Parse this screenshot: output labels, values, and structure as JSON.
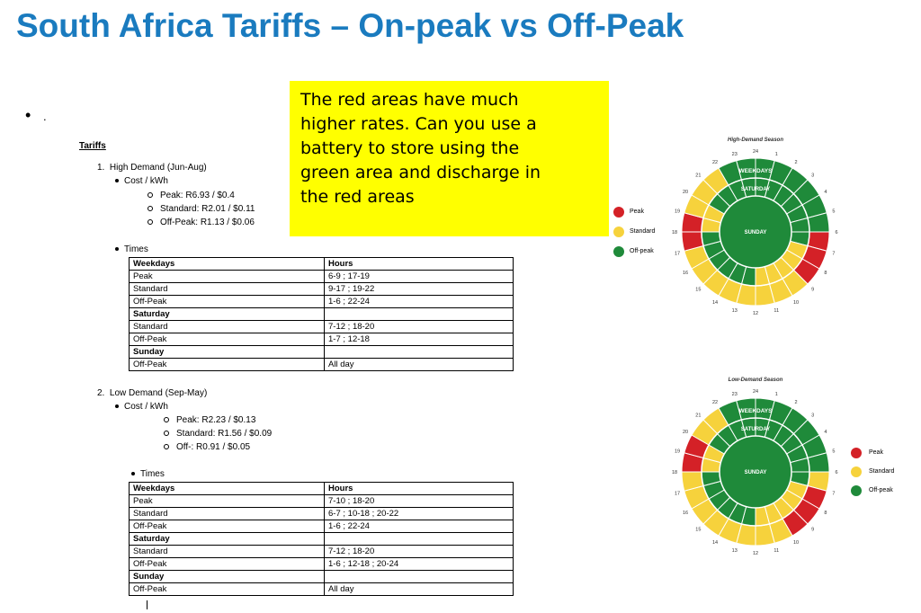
{
  "title": "South Africa Tariffs – On-peak vs Off-Peak",
  "bullet_text": ".",
  "callout": {
    "lines": [
      "The red areas have much",
      "higher rates. Can you use a",
      "battery to store using the",
      "green area and discharge in",
      "the red areas"
    ]
  },
  "doc": {
    "heading": "Tariffs",
    "high": {
      "num": "1.",
      "label": "High Demand (Jun-Aug)",
      "cost_label": "Cost / kWh",
      "costs": [
        "Peak: R6.93 / $0.4",
        "Standard: R2.01 / $0.11",
        "Off-Peak: R1.13 / $0.06"
      ],
      "times_label": "Times"
    },
    "low": {
      "num": "2.",
      "label": "Low Demand (Sep-May)",
      "cost_label": "Cost / kWh",
      "costs": [
        "Peak: R2.23 / $0.13",
        "Standard: R1.56 / $0.09",
        "Off-: R0.91 / $0.05"
      ],
      "times_label": "Times"
    }
  },
  "table_high": [
    [
      "Weekdays",
      "Hours"
    ],
    [
      "Peak",
      "6-9 ; 17-19"
    ],
    [
      "Standard",
      "9-17 ; 19-22"
    ],
    [
      "Off-Peak",
      "1-6 ; 22-24"
    ],
    [
      "Saturday",
      ""
    ],
    [
      "Standard",
      "7-12 ; 18-20"
    ],
    [
      "Off-Peak",
      "1-7 ; 12-18"
    ],
    [
      "Sunday",
      ""
    ],
    [
      "Off-Peak",
      "All day"
    ]
  ],
  "table_low": [
    [
      "Weekdays",
      "Hours"
    ],
    [
      "Peak",
      "7-10 ; 18-20"
    ],
    [
      "Standard",
      "6-7 ; 10-18 ; 20-22"
    ],
    [
      "Off-Peak",
      "1-6 ; 22-24"
    ],
    [
      "Saturday",
      ""
    ],
    [
      "Standard",
      "7-12 ; 18-20"
    ],
    [
      "Off-Peak",
      "1-6 ; 12-18 ; 20-24"
    ],
    [
      "Sunday",
      ""
    ],
    [
      "Off-Peak",
      "All day"
    ]
  ],
  "charts": {
    "high_title": "High-Demand Season",
    "low_title": "Low-Demand Season",
    "ring_weekdays": "WEEKDAYS",
    "ring_saturday": "SATURDAY",
    "ring_sunday": "SUNDAY",
    "legend": [
      "Peak",
      "Standard",
      "Off-peak"
    ],
    "colors": {
      "peak": "#d42127",
      "standard": "#f6d23c",
      "offpeak": "#1f8a3a"
    },
    "hours": [
      "24",
      "1",
      "2",
      "3",
      "4",
      "5",
      "6",
      "7",
      "8",
      "9",
      "10",
      "11",
      "12",
      "13",
      "14",
      "15",
      "16",
      "17",
      "18",
      "19",
      "20",
      "21",
      "22",
      "23"
    ],
    "high_weekdays": [
      "o",
      "o",
      "o",
      "o",
      "o",
      "o",
      "p",
      "p",
      "p",
      "s",
      "s",
      "s",
      "s",
      "s",
      "s",
      "s",
      "s",
      "p",
      "p",
      "s",
      "s",
      "s",
      "o",
      "o"
    ],
    "high_saturday": [
      "o",
      "o",
      "o",
      "o",
      "o",
      "o",
      "o",
      "s",
      "s",
      "s",
      "s",
      "s",
      "o",
      "o",
      "o",
      "o",
      "o",
      "o",
      "s",
      "s",
      "o",
      "o",
      "o",
      "o"
    ],
    "low_weekdays": [
      "o",
      "o",
      "o",
      "o",
      "o",
      "o",
      "s",
      "p",
      "p",
      "p",
      "s",
      "s",
      "s",
      "s",
      "s",
      "s",
      "s",
      "s",
      "p",
      "p",
      "s",
      "s",
      "o",
      "o"
    ],
    "low_saturday": [
      "o",
      "o",
      "o",
      "o",
      "o",
      "o",
      "o",
      "s",
      "s",
      "s",
      "s",
      "s",
      "o",
      "o",
      "o",
      "o",
      "o",
      "o",
      "s",
      "s",
      "o",
      "o",
      "o",
      "o"
    ]
  }
}
